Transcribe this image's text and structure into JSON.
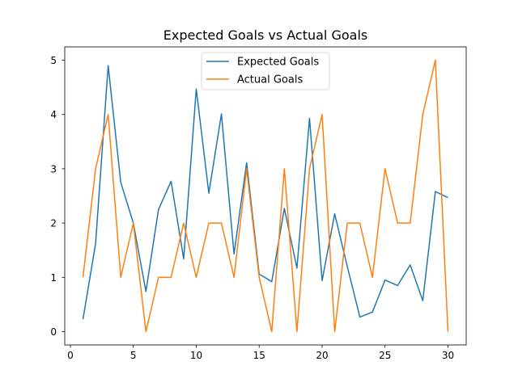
{
  "chart_data": {
    "type": "line",
    "title": "Expected Goals vs Actual Goals",
    "xlabel": "",
    "ylabel": "",
    "x": [
      1,
      2,
      3,
      4,
      5,
      6,
      7,
      8,
      9,
      10,
      11,
      12,
      13,
      14,
      15,
      16,
      17,
      18,
      19,
      20,
      21,
      22,
      23,
      24,
      25,
      26,
      27,
      28,
      29,
      30
    ],
    "series": [
      {
        "name": "Expected Goals",
        "color": "#1f77b4",
        "values": [
          0.23,
          1.62,
          4.9,
          2.75,
          2.0,
          0.74,
          2.25,
          2.77,
          1.34,
          4.47,
          2.55,
          4.01,
          1.43,
          3.11,
          1.06,
          0.92,
          2.27,
          1.17,
          3.93,
          0.94,
          2.17,
          1.2,
          0.27,
          0.36,
          0.95,
          0.85,
          1.23,
          0.57,
          2.58,
          2.47
        ]
      },
      {
        "name": "Actual Goals",
        "color": "#ff7f0e",
        "values": [
          1,
          3,
          4,
          1,
          2,
          0,
          1,
          1,
          2,
          1,
          2,
          2,
          1,
          3,
          1,
          0,
          3,
          0,
          3,
          4,
          0,
          2,
          2,
          1,
          3,
          2,
          2,
          4,
          5,
          0
        ]
      }
    ],
    "xlim": [
      -0.45,
      31.45
    ],
    "ylim": [
      -0.245,
      5.245
    ],
    "xticks": [
      0,
      5,
      10,
      15,
      20,
      25,
      30
    ],
    "yticks": [
      0,
      1,
      2,
      3,
      4,
      5
    ],
    "grid": false,
    "legend_position": "top-center"
  }
}
